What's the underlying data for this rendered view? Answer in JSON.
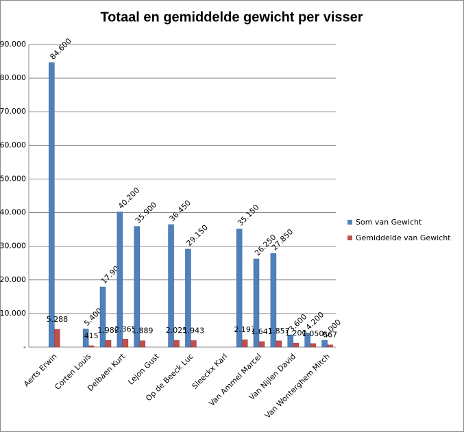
{
  "chart_data": {
    "type": "bar",
    "title": "Totaal en gemiddelde gewicht per visser",
    "categories": [
      null,
      "Aerts Erwin",
      null,
      "Corten Louis",
      null,
      "Delbaen Kurt",
      null,
      "Lejon Gust",
      null,
      "Op de Beeck Luc",
      null,
      "Sleeckx Karl",
      null,
      "Van Ammel Marcel",
      null,
      "Van Nijlen David",
      null,
      "Van Wonterghem Mitch"
    ],
    "series": [
      {
        "name": "Som van Gewicht",
        "color": "#4f81bd",
        "values": [
          null,
          84600,
          null,
          5400,
          17900,
          40200,
          35900,
          null,
          36450,
          29150,
          null,
          null,
          35150,
          26250,
          27850,
          3600,
          4200,
          2000
        ],
        "value_labels": [
          null,
          "84.600",
          null,
          "5.400",
          "17.900",
          "40.200",
          "35.900",
          null,
          "36.450",
          "29.150",
          null,
          null,
          "35.150",
          "26.250",
          "27.850",
          "3.600",
          "4.200",
          "2.000"
        ]
      },
      {
        "name": "Gemiddelde van Gewicht",
        "color": "#c0504d",
        "values": [
          null,
          5288,
          null,
          415,
          1989,
          2365,
          1889,
          null,
          2025,
          1943,
          null,
          null,
          2197,
          1641,
          1857,
          1200,
          1050,
          667
        ],
        "value_labels": [
          null,
          "5.288",
          null,
          "415",
          "1.989",
          "2.365",
          "1.889",
          null,
          "2.025",
          "1.943",
          null,
          null,
          "2.197",
          "1.641",
          "1.857",
          "1.200",
          "1.050",
          "667"
        ]
      }
    ],
    "ylim": [
      0,
      90000
    ],
    "yticks": [
      {
        "value": 0,
        "label": "-"
      },
      {
        "value": 10000,
        "label": "10.000"
      },
      {
        "value": 20000,
        "label": "20.000"
      },
      {
        "value": 30000,
        "label": "30.000"
      },
      {
        "value": 40000,
        "label": "40.000"
      },
      {
        "value": 50000,
        "label": "50.000"
      },
      {
        "value": 60000,
        "label": "60.000"
      },
      {
        "value": 70000,
        "label": "70.000"
      },
      {
        "value": 80000,
        "label": "80.000"
      },
      {
        "value": 90000,
        "label": "90.000"
      }
    ],
    "grid": true,
    "legend": "right"
  }
}
